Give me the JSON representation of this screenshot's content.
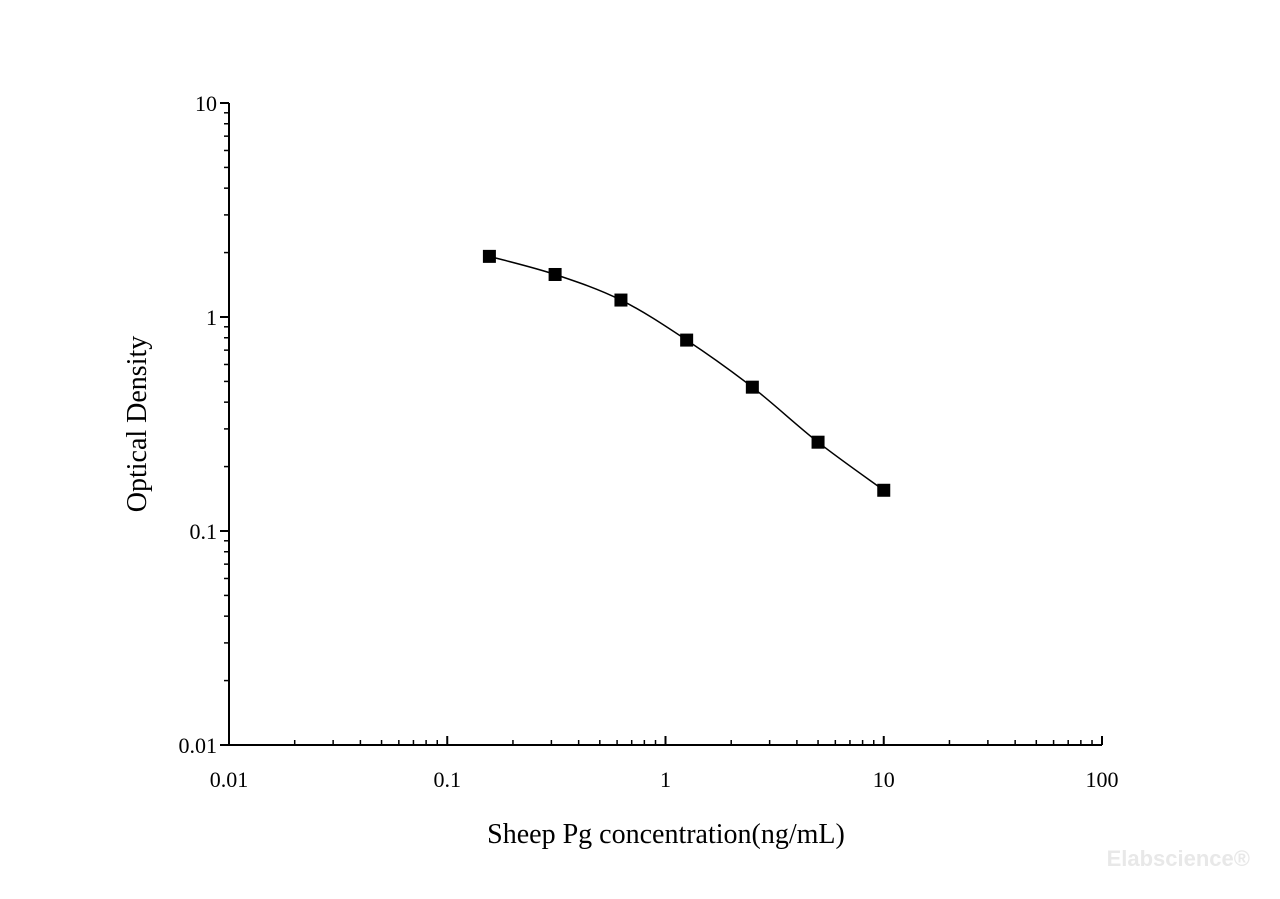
{
  "chart_data": {
    "type": "line",
    "xscale": "log",
    "yscale": "log",
    "xlim": [
      0.01,
      100
    ],
    "ylim": [
      0.01,
      10
    ],
    "xlabel": "Sheep Pg concentration(ng/mL)",
    "ylabel": "Optical Density",
    "x_ticks": [
      0.01,
      0.1,
      1,
      10,
      100
    ],
    "x_tick_labels": [
      "0.01",
      "0.1",
      "1",
      "10",
      "100"
    ],
    "y_ticks": [
      0.01,
      0.1,
      1,
      10
    ],
    "y_tick_labels": [
      "0.01",
      "0.1",
      "1",
      "10"
    ],
    "grid": false,
    "marker": "square",
    "series": [
      {
        "x": [
          0.156,
          0.312,
          0.625,
          1.25,
          2.5,
          5,
          10
        ],
        "y": [
          1.92,
          1.58,
          1.2,
          0.78,
          0.47,
          0.26,
          0.155
        ],
        "color": "#000000"
      }
    ]
  },
  "watermark": "Elabscience®"
}
